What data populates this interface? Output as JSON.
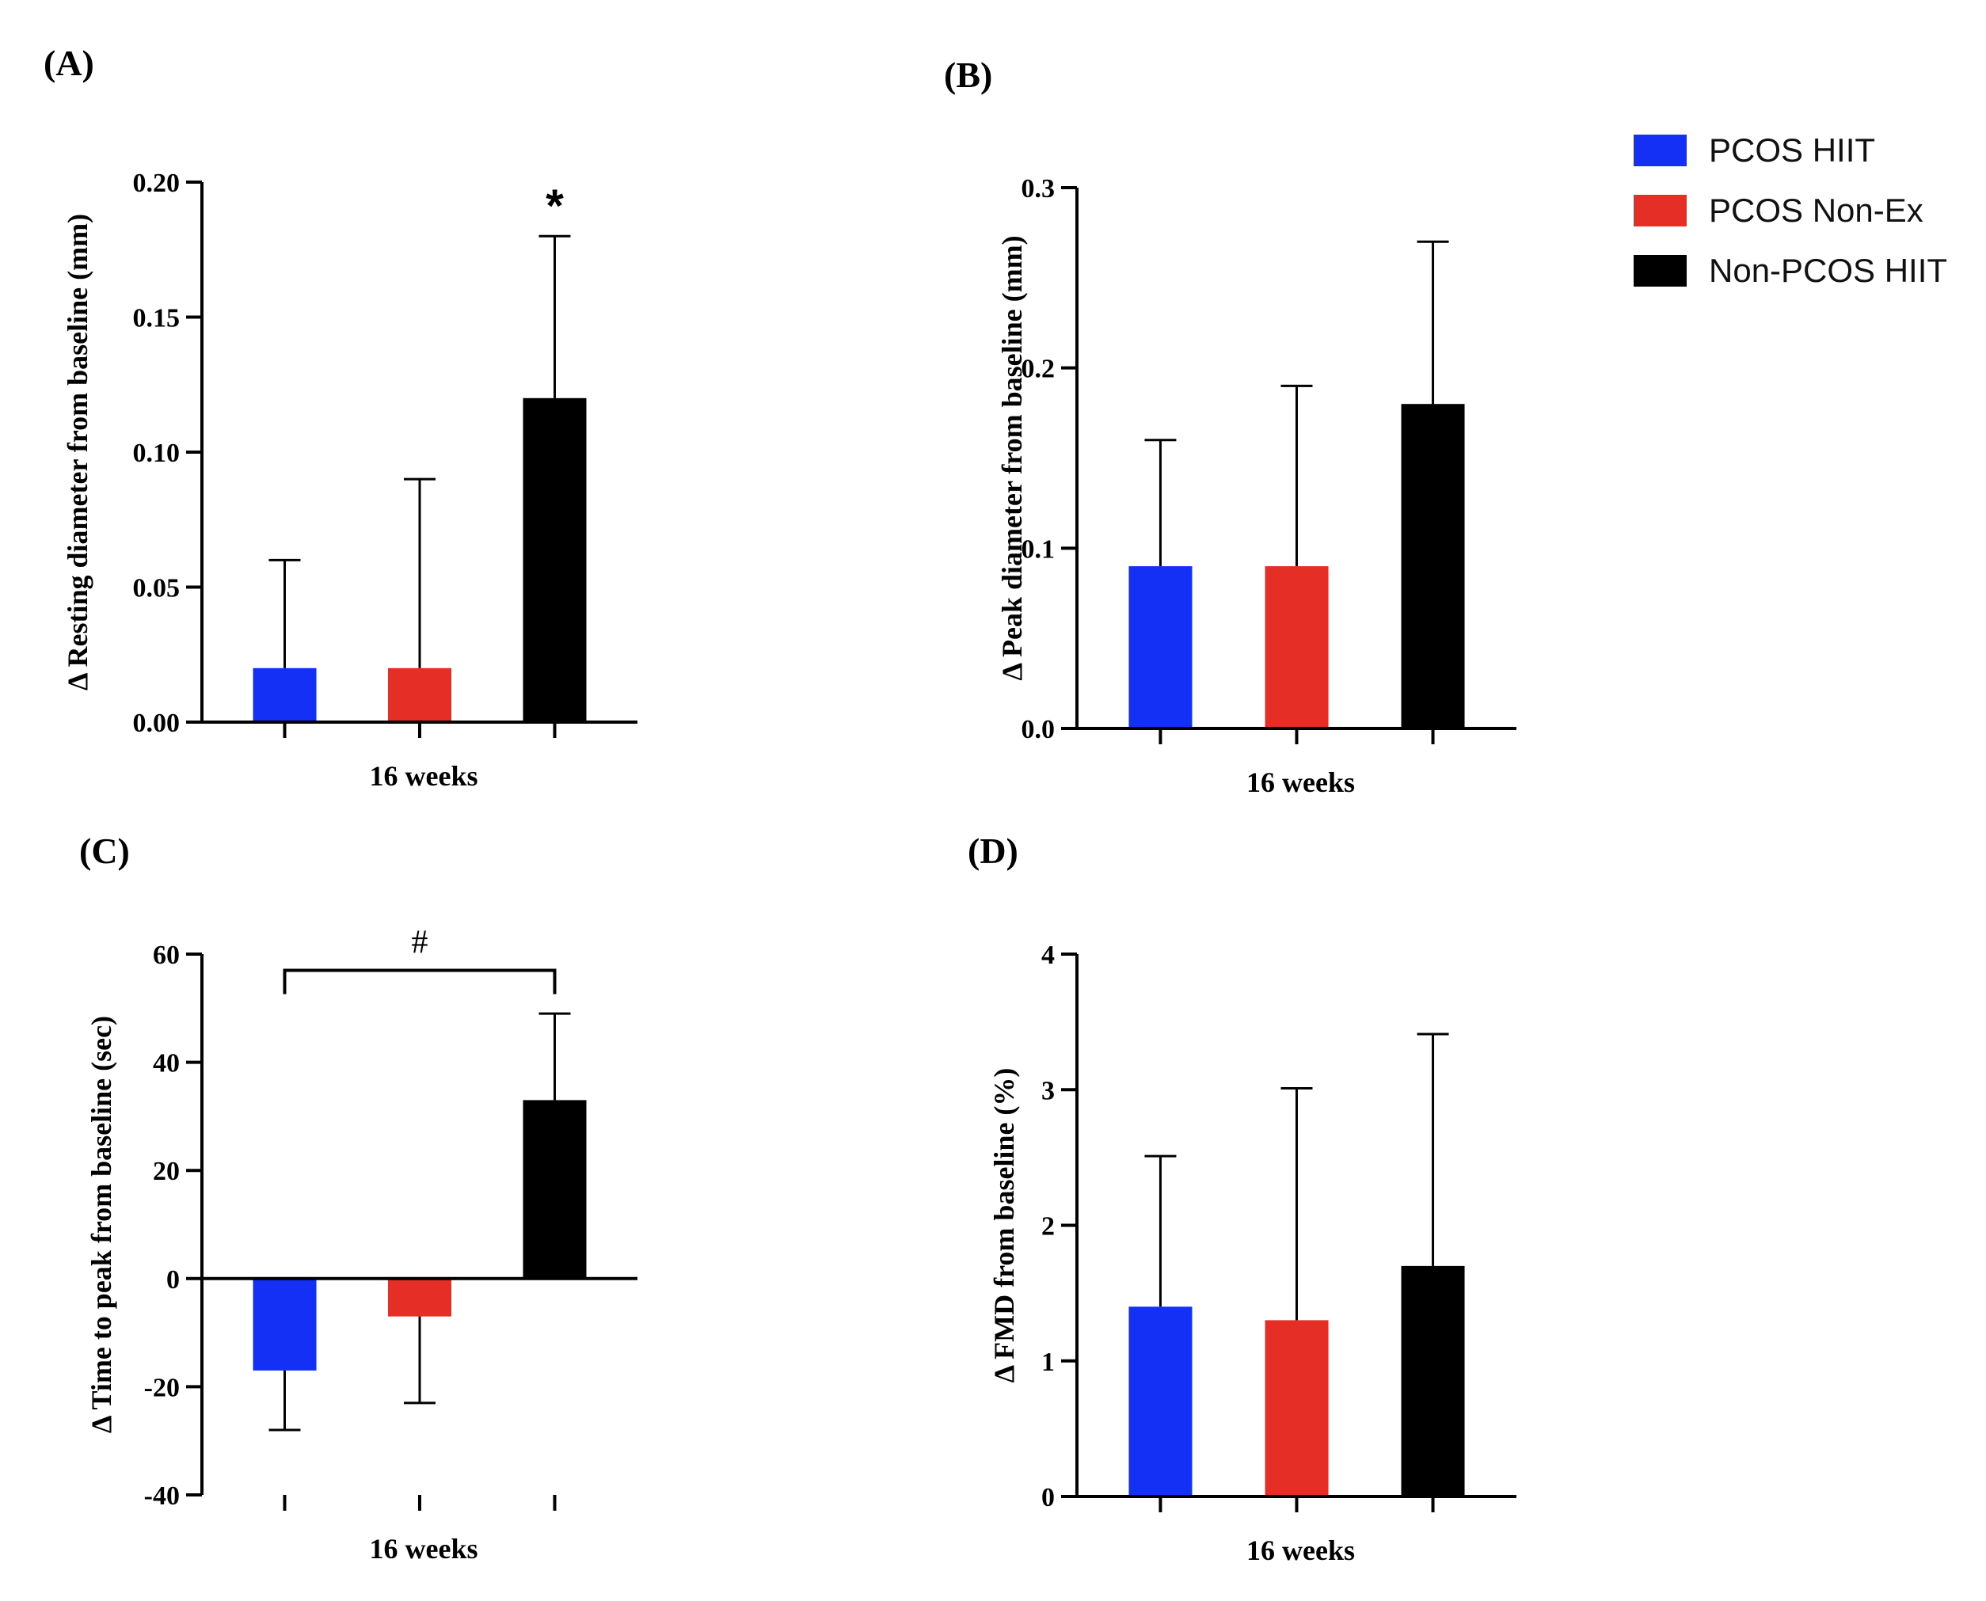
{
  "colors": {
    "PCOS HIIT": "#1530f5",
    "PCOS Non-Ex": "#e52e26",
    "Non-PCOS HIIT": "#000000"
  },
  "legend": [
    {
      "label": "PCOS HIIT",
      "color": "#1530f5"
    },
    {
      "label": "PCOS Non-Ex",
      "color": "#e52e26"
    },
    {
      "label": "Non-PCOS HIIT",
      "color": "#000000"
    }
  ],
  "chart_data": [
    {
      "id": "A",
      "panel_label": "(A)",
      "type": "bar",
      "xlabel": "16 weeks",
      "ylabel": "Δ Resting diameter from baseline (mm)",
      "ylim": [
        0,
        0.2
      ],
      "yticks": [
        0,
        0.05,
        0.1,
        0.15,
        0.2
      ],
      "ytick_labels": [
        "0.00",
        "0.05",
        "0.10",
        "0.15",
        "0.20"
      ],
      "categories": [
        "PCOS HIIT",
        "PCOS Non-Ex",
        "Non-PCOS HIIT"
      ],
      "values": [
        0.02,
        0.02,
        0.12
      ],
      "errors": [
        0.04,
        0.07,
        0.06
      ],
      "annotation": {
        "type": "star",
        "text": "*",
        "target": 2
      }
    },
    {
      "id": "B",
      "panel_label": "(B)",
      "type": "bar",
      "xlabel": "16 weeks",
      "ylabel": "Δ Peak diameter from baseline (mm)",
      "ylim": [
        0,
        0.3
      ],
      "yticks": [
        0,
        0.1,
        0.2,
        0.3
      ],
      "ytick_labels": [
        "0.0",
        "0.1",
        "0.2",
        "0.3"
      ],
      "categories": [
        "PCOS HIIT",
        "PCOS Non-Ex",
        "Non-PCOS HIIT"
      ],
      "values": [
        0.09,
        0.09,
        0.18
      ],
      "errors": [
        0.07,
        0.1,
        0.09
      ]
    },
    {
      "id": "C",
      "panel_label": "(C)",
      "type": "bar",
      "xlabel": "16 weeks",
      "ylabel": "Δ Time to peak from baseline (sec)",
      "ylim": [
        -40,
        60
      ],
      "yticks": [
        -40,
        -20,
        0,
        20,
        40,
        60
      ],
      "ytick_labels": [
        "-40",
        "-20",
        "0",
        "20",
        "40",
        "60"
      ],
      "categories": [
        "PCOS HIIT",
        "PCOS Non-Ex",
        "Non-PCOS HIIT"
      ],
      "values": [
        -17,
        -7,
        33
      ],
      "errors": [
        11,
        16,
        16
      ],
      "annotation": {
        "type": "bracket",
        "text": "#",
        "from": 0,
        "to": 2,
        "y": 57
      }
    },
    {
      "id": "D",
      "panel_label": "(D)",
      "type": "bar",
      "xlabel": "16 weeks",
      "ylabel": "Δ FMD from baseline (%)",
      "ylim": [
        0,
        4
      ],
      "yticks": [
        0,
        1,
        2,
        3,
        4
      ],
      "ytick_labels": [
        "0",
        "1",
        "2",
        "3",
        "4"
      ],
      "categories": [
        "PCOS HIIT",
        "PCOS Non-Ex",
        "Non-PCOS HIIT"
      ],
      "values": [
        1.4,
        1.3,
        1.7
      ],
      "errors": [
        1.11,
        1.71,
        1.71
      ]
    }
  ]
}
